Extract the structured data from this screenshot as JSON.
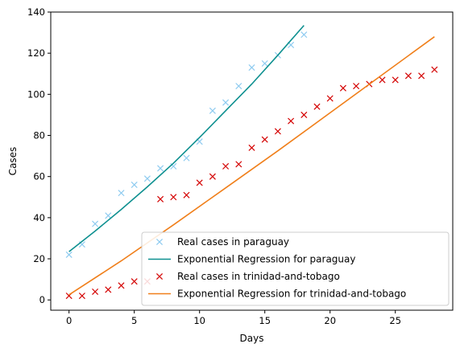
{
  "chart_data": {
    "type": "scatter",
    "xlabel": "Days",
    "ylabel": "Cases",
    "xlim": [
      -1.4,
      29.4
    ],
    "ylim": [
      -5,
      140
    ],
    "xticks": [
      0,
      5,
      10,
      15,
      20,
      25
    ],
    "yticks": [
      0,
      20,
      40,
      60,
      80,
      100,
      120,
      140
    ],
    "grid": false,
    "legend_position": "lower-right",
    "series": [
      {
        "name": "Real cases in paraguay",
        "kind": "scatter",
        "marker": "x",
        "color": "#8ecbf0",
        "x": [
          0,
          1,
          2,
          3,
          4,
          5,
          6,
          7,
          8,
          9,
          10,
          11,
          12,
          13,
          14,
          15,
          16,
          17,
          18
        ],
        "y": [
          22,
          27,
          37,
          41,
          52,
          56,
          59,
          64,
          65,
          69,
          77,
          92,
          96,
          104,
          113,
          115,
          119,
          124,
          129
        ]
      },
      {
        "name": "Exponential Regression for paraguay",
        "kind": "line",
        "color": "#0e9090",
        "x": [
          0,
          2,
          4,
          6,
          8,
          10,
          12,
          14,
          16,
          18
        ],
        "y": [
          23.5,
          33.5,
          44,
          55,
          66.5,
          79,
          92,
          105,
          119,
          133.5
        ]
      },
      {
        "name": "Real cases in trinidad-and-tobago",
        "kind": "scatter",
        "marker": "x",
        "color": "#d40000",
        "x": [
          0,
          1,
          2,
          3,
          4,
          5,
          6,
          7,
          8,
          9,
          10,
          11,
          12,
          13,
          14,
          15,
          16,
          17,
          18,
          19,
          20,
          21,
          22,
          23,
          24,
          25,
          26,
          27,
          28
        ],
        "y": [
          2,
          2,
          4,
          5,
          7,
          9,
          9,
          49,
          50,
          51,
          57,
          60,
          65,
          66,
          74,
          78,
          82,
          87,
          90,
          94,
          98,
          103,
          104,
          105,
          107,
          107,
          109,
          109,
          112
        ]
      },
      {
        "name": "Exponential Regression for trinidad-and-tobago",
        "kind": "line",
        "color": "#f07f1a",
        "x": [
          0,
          4,
          8,
          12,
          16,
          20,
          24,
          28
        ],
        "y": [
          2.5,
          19,
          36.5,
          54.5,
          72.5,
          91,
          109.5,
          128
        ]
      }
    ]
  }
}
